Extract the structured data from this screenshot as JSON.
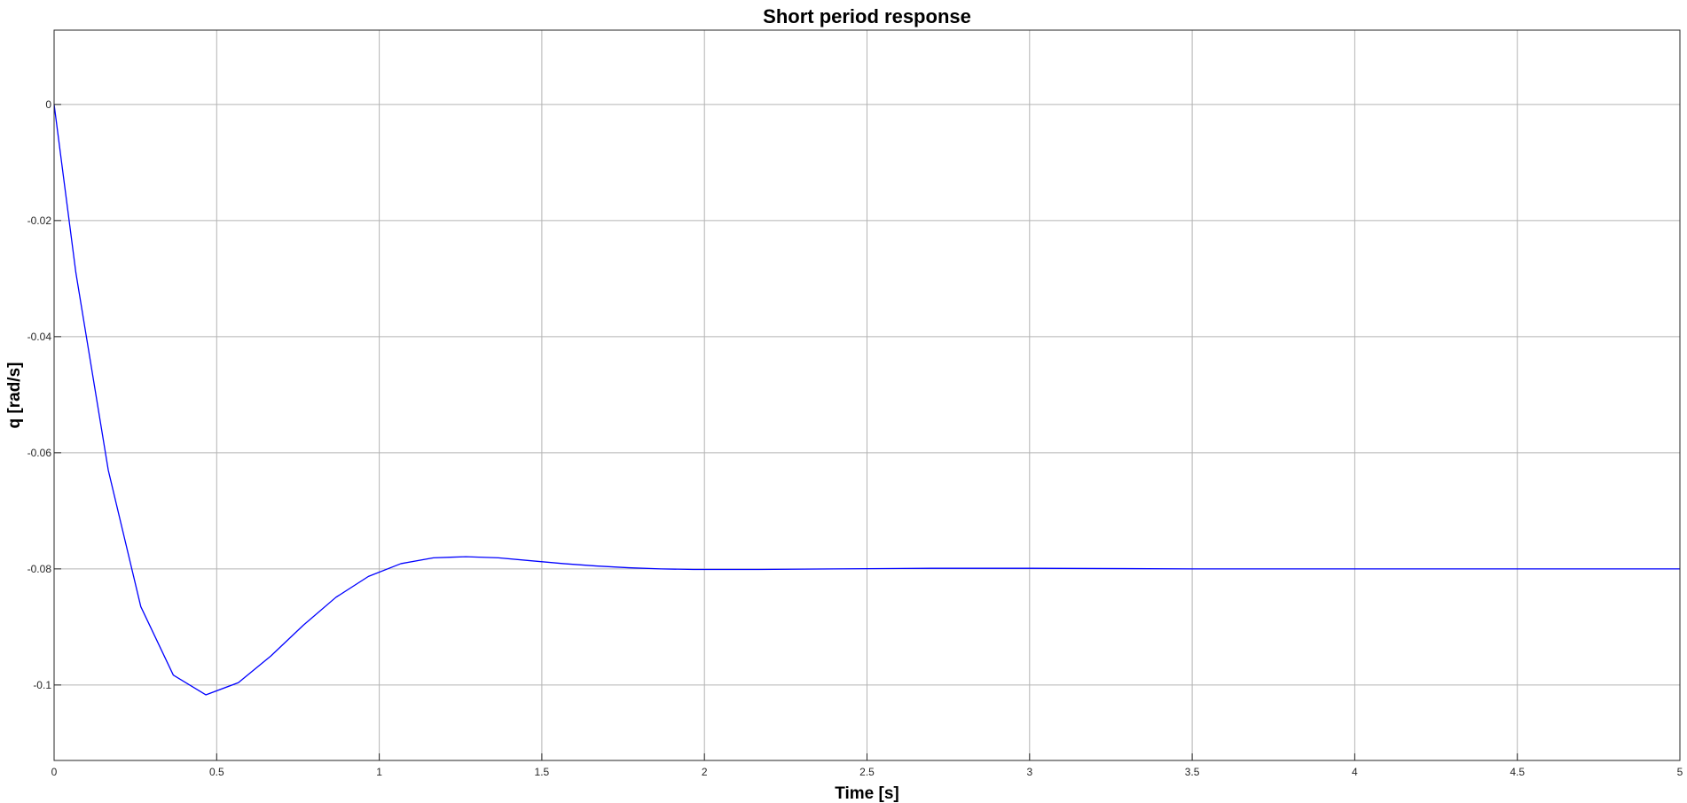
{
  "chart_data": {
    "type": "line",
    "title": "Short period response",
    "xlabel": "Time [s]",
    "ylabel": "q [rad/s]",
    "xlim": [
      0,
      5
    ],
    "ylim": [
      -0.113,
      0.0128
    ],
    "grid": true,
    "x_ticks": [
      0,
      0.5,
      1,
      1.5,
      2,
      2.5,
      3,
      3.5,
      4,
      4.5,
      5
    ],
    "x_tick_labels": [
      "0",
      "0.5",
      "1",
      "1.5",
      "2",
      "2.5",
      "3",
      "3.5",
      "4",
      "4.5",
      "5"
    ],
    "y_ticks": [
      0,
      -0.02,
      -0.04,
      -0.06,
      -0.08,
      -0.1
    ],
    "y_tick_labels": [
      "0",
      "-0.02",
      "-0.04",
      "-0.06",
      "-0.08",
      "-0.1"
    ],
    "series": [
      {
        "color": "#0000ff",
        "x": [
          0,
          0.067,
          0.1666,
          0.2666,
          0.3666,
          0.4666,
          0.5666,
          0.6666,
          0.7666,
          0.8666,
          0.9666,
          1.0666,
          1.1666,
          1.2666,
          1.3666,
          1.4666,
          1.5666,
          1.6666,
          1.7666,
          1.8666,
          1.9666,
          2.0666,
          2.1666,
          2.4,
          2.7,
          3.0,
          3.5,
          4.0,
          4.5,
          5.0
        ],
        "y": [
          0,
          -0.029,
          -0.063,
          -0.0865,
          -0.0983,
          -0.1017,
          -0.0996,
          -0.095,
          -0.0897,
          -0.0849,
          -0.0813,
          -0.0791,
          -0.0781,
          -0.0779,
          -0.0781,
          -0.0786,
          -0.0791,
          -0.0795,
          -0.0798,
          -0.08,
          -0.0801,
          -0.0801,
          -0.0801,
          -0.08,
          -0.0799,
          -0.0799,
          -0.08,
          -0.08,
          -0.08,
          -0.08
        ]
      }
    ]
  }
}
